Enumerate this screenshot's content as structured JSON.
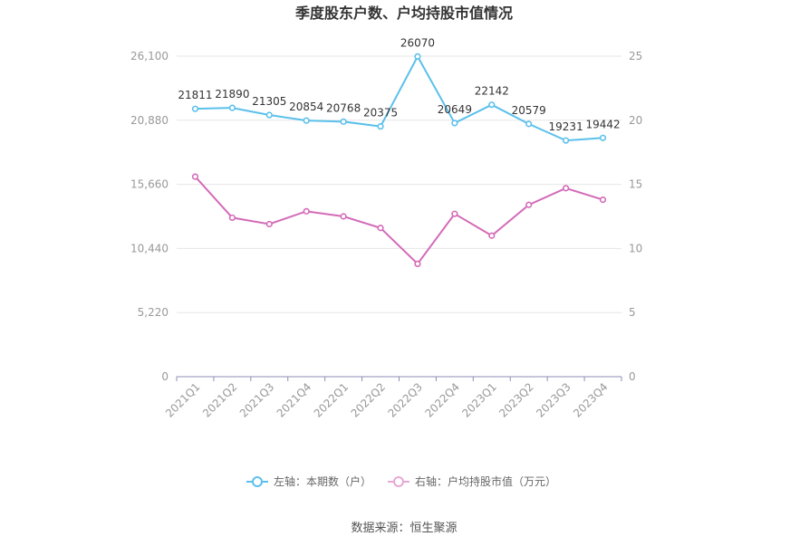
{
  "chart_data": {
    "type": "line",
    "title": "季度股东户数、户均持股市值情况",
    "categories": [
      "2021Q1",
      "2021Q2",
      "2021Q3",
      "2021Q4",
      "2022Q1",
      "2022Q2",
      "2022Q3",
      "2022Q4",
      "2023Q1",
      "2023Q2",
      "2023Q3",
      "2023Q4"
    ],
    "left_axis": {
      "ylim": [
        0,
        26100
      ],
      "ticks": [
        "0",
        "5,220",
        "10,440",
        "15,660",
        "20,880",
        "26,100"
      ]
    },
    "right_axis": {
      "ylim": [
        0,
        25
      ],
      "ticks": [
        "0",
        "5",
        "10",
        "15",
        "20",
        "25"
      ]
    },
    "series": [
      {
        "name": "左轴：本期数（户）",
        "axis": "left",
        "color": "#5bc0eb",
        "values": [
          21811,
          21890,
          21305,
          20854,
          20768,
          20375,
          26070,
          20649,
          22142,
          20579,
          19231,
          19442
        ],
        "labels": [
          "21811",
          "21890",
          "21305",
          "20854",
          "20768",
          "20375",
          "26070",
          "20649",
          "22142",
          "20579",
          "19231",
          "19442"
        ]
      },
      {
        "name": "右轴：户均持股市值（万元）",
        "axis": "right",
        "color": "#d36bb8",
        "values": [
          15.6,
          12.4,
          11.9,
          12.9,
          12.5,
          11.6,
          8.8,
          12.7,
          11.0,
          13.4,
          14.7,
          13.8
        ]
      }
    ],
    "grid": true,
    "legend_position": "bottom"
  },
  "footer": {
    "source": "数据来源：恒生聚源"
  }
}
